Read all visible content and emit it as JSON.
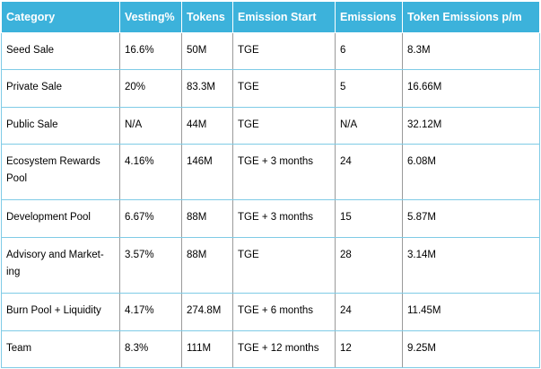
{
  "headers": [
    "Category",
    "Vesting%",
    "Tokens",
    "Emission Start",
    "Emissions",
    "Token Emissions p/m"
  ],
  "rows": [
    [
      "Seed Sale",
      "16.6%",
      "50M",
      "TGE",
      "6",
      "8.3M"
    ],
    [
      "Private Sale",
      "20%",
      "83.3M",
      "TGE",
      "5",
      "16.66M"
    ],
    [
      "Public Sale",
      "N/A",
      "44M",
      "TGE",
      "N/A",
      "32.12M"
    ],
    [
      "Ecosystem Rewards Pool",
      "4.16%",
      "146M",
      "TGE + 3 months",
      "24",
      "6.08M"
    ],
    [
      "Development Pool",
      "6.67%",
      "88M",
      "TGE + 3 months",
      "15",
      "5.87M"
    ],
    [
      "Advisory and Market-ing",
      "3.57%",
      "88M",
      "TGE",
      "28",
      "3.14M"
    ],
    [
      "Burn Pool + Liquidity",
      "4.17%",
      "274.8M",
      "TGE + 6 months",
      "24",
      "11.45M"
    ],
    [
      "Team",
      "8.3%",
      "111M",
      "TGE + 12 months",
      "12",
      "9.25M"
    ]
  ],
  "colors": {
    "header_bg": "#3cb2db",
    "header_text": "#ffffff",
    "row_border": "#7fcbe6",
    "cell_divider": "#9a9a9a"
  }
}
